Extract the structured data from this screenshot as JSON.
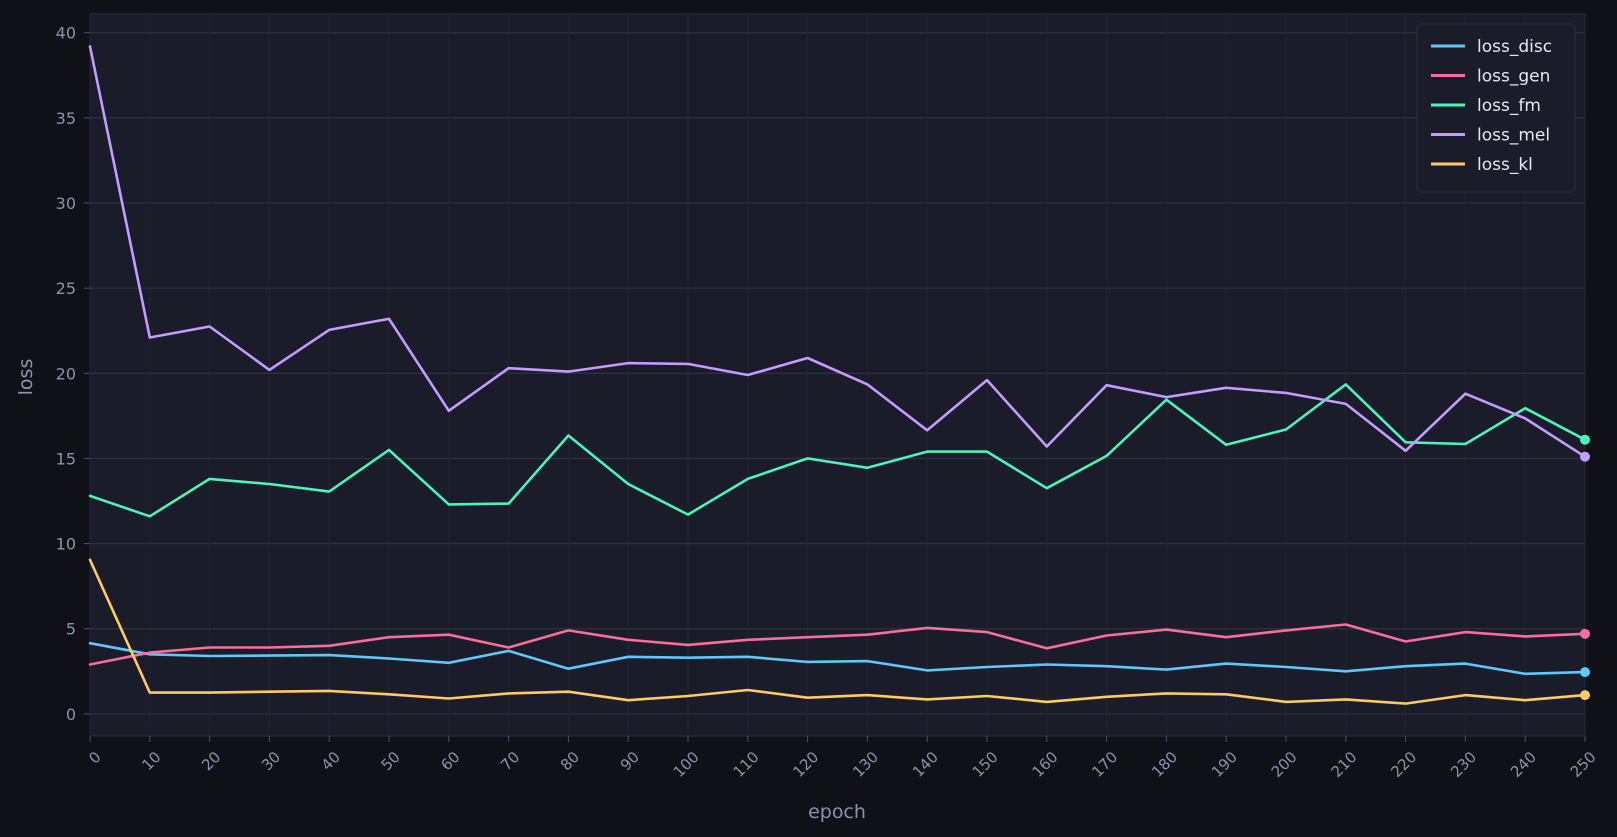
{
  "chart_data": {
    "type": "line",
    "title": "",
    "xlabel": "epoch",
    "ylabel": "loss",
    "x": [
      0,
      10,
      20,
      30,
      40,
      50,
      60,
      70,
      80,
      90,
      100,
      110,
      120,
      130,
      140,
      150,
      160,
      170,
      180,
      190,
      200,
      210,
      220,
      230,
      240,
      250
    ],
    "xlim": [
      0,
      250
    ],
    "ylim": [
      -1.3,
      41.1
    ],
    "yticks": [
      0,
      5,
      10,
      15,
      20,
      25,
      30,
      35,
      40
    ],
    "grid": true,
    "legend_position": "top-right",
    "series": [
      {
        "name": "loss_disc",
        "color": "#5ec8fa",
        "values": [
          4.15,
          3.5,
          3.4,
          3.42,
          3.45,
          3.25,
          3.0,
          3.7,
          2.65,
          3.35,
          3.3,
          3.35,
          3.05,
          3.1,
          2.55,
          2.75,
          2.9,
          2.8,
          2.6,
          2.95,
          2.75,
          2.5,
          2.8,
          2.95,
          2.35,
          2.45
        ]
      },
      {
        "name": "loss_gen",
        "color": "#f76d9d",
        "values": [
          2.9,
          3.6,
          3.9,
          3.9,
          4.0,
          4.5,
          4.65,
          3.9,
          4.9,
          4.35,
          4.05,
          4.35,
          4.5,
          4.65,
          5.05,
          4.8,
          3.85,
          4.6,
          4.95,
          4.5,
          4.9,
          5.25,
          4.25,
          4.8,
          4.55,
          4.7
        ]
      },
      {
        "name": "loss_fm",
        "color": "#4ef2bc",
        "values": [
          12.8,
          11.6,
          13.8,
          13.5,
          13.05,
          15.5,
          12.3,
          12.35,
          16.35,
          13.5,
          11.7,
          13.8,
          15.0,
          14.45,
          15.4,
          15.4,
          13.25,
          15.15,
          18.45,
          15.8,
          16.7,
          19.35,
          15.95,
          15.85,
          17.95,
          16.1
        ]
      },
      {
        "name": "loss_mel",
        "color": "#c49bff",
        "values": [
          39.2,
          22.1,
          22.75,
          20.2,
          22.55,
          23.2,
          17.8,
          20.3,
          20.1,
          20.6,
          20.55,
          19.9,
          20.9,
          19.35,
          16.65,
          19.6,
          15.7,
          19.3,
          18.6,
          19.15,
          18.85,
          18.2,
          15.45,
          18.8,
          17.35,
          15.1
        ]
      },
      {
        "name": "loss_kl",
        "color": "#ffc966",
        "values": [
          9.05,
          1.25,
          1.25,
          1.3,
          1.35,
          1.15,
          0.9,
          1.2,
          1.3,
          0.8,
          1.05,
          1.4,
          0.95,
          1.1,
          0.85,
          1.05,
          0.7,
          1.0,
          1.2,
          1.15,
          0.7,
          0.85,
          0.6,
          1.1,
          0.8,
          1.1
        ]
      }
    ]
  }
}
